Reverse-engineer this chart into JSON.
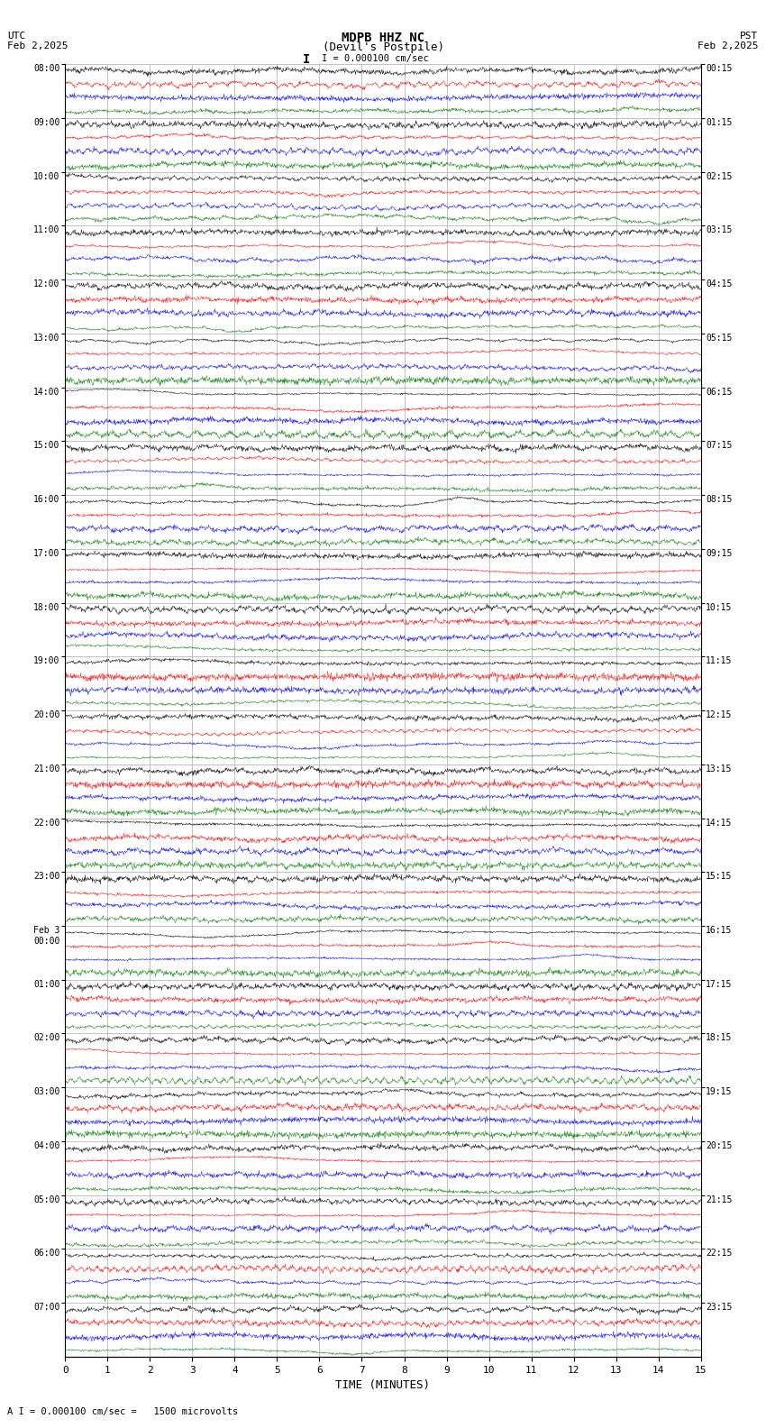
{
  "title_center_line1": "MDPB HHZ NC",
  "title_center_line2": "(Devil's Postpile)",
  "title_left_line1": "UTC",
  "title_left_line2": "Feb 2,2025",
  "title_right_line1": "PST",
  "title_right_line2": "Feb 2,2025",
  "scale_label": "I = 0.000100 cm/sec",
  "bottom_label": "A I = 0.000100 cm/sec =   1500 microvolts",
  "xlabel": "TIME (MINUTES)",
  "xlim": [
    0,
    15
  ],
  "xticks": [
    0,
    1,
    2,
    3,
    4,
    5,
    6,
    7,
    8,
    9,
    10,
    11,
    12,
    13,
    14,
    15
  ],
  "bg_color": "#ffffff",
  "grid_color": "#aaaaaa",
  "colors": [
    "black",
    "red",
    "blue",
    "green"
  ],
  "utc_labels": [
    "08:00",
    "09:00",
    "10:00",
    "11:00",
    "12:00",
    "13:00",
    "14:00",
    "15:00",
    "16:00",
    "17:00",
    "18:00",
    "19:00",
    "20:00",
    "21:00",
    "22:00",
    "23:00",
    "Feb 3\n00:00",
    "01:00",
    "02:00",
    "03:00",
    "04:00",
    "05:00",
    "06:00",
    "07:00"
  ],
  "pst_labels": [
    "00:15",
    "01:15",
    "02:15",
    "03:15",
    "04:15",
    "05:15",
    "06:15",
    "07:15",
    "08:15",
    "09:15",
    "10:15",
    "11:15",
    "12:15",
    "13:15",
    "14:15",
    "15:15",
    "16:15",
    "17:15",
    "18:15",
    "19:15",
    "20:15",
    "21:15",
    "22:15",
    "23:15"
  ],
  "hour_amplitudes": [
    1.0,
    1.0,
    1.0,
    1.0,
    1.0,
    1.0,
    1.0,
    1.0,
    1.0,
    1.0,
    1.0,
    1.0,
    2.0,
    3.5,
    5.0,
    6.0,
    5.0,
    4.5,
    5.5,
    7.0,
    5.0,
    4.0,
    3.0,
    2.0
  ],
  "num_traces_per_hour": 4,
  "num_hours": 24,
  "fig_width": 8.5,
  "fig_height": 15.84,
  "dpi": 100
}
